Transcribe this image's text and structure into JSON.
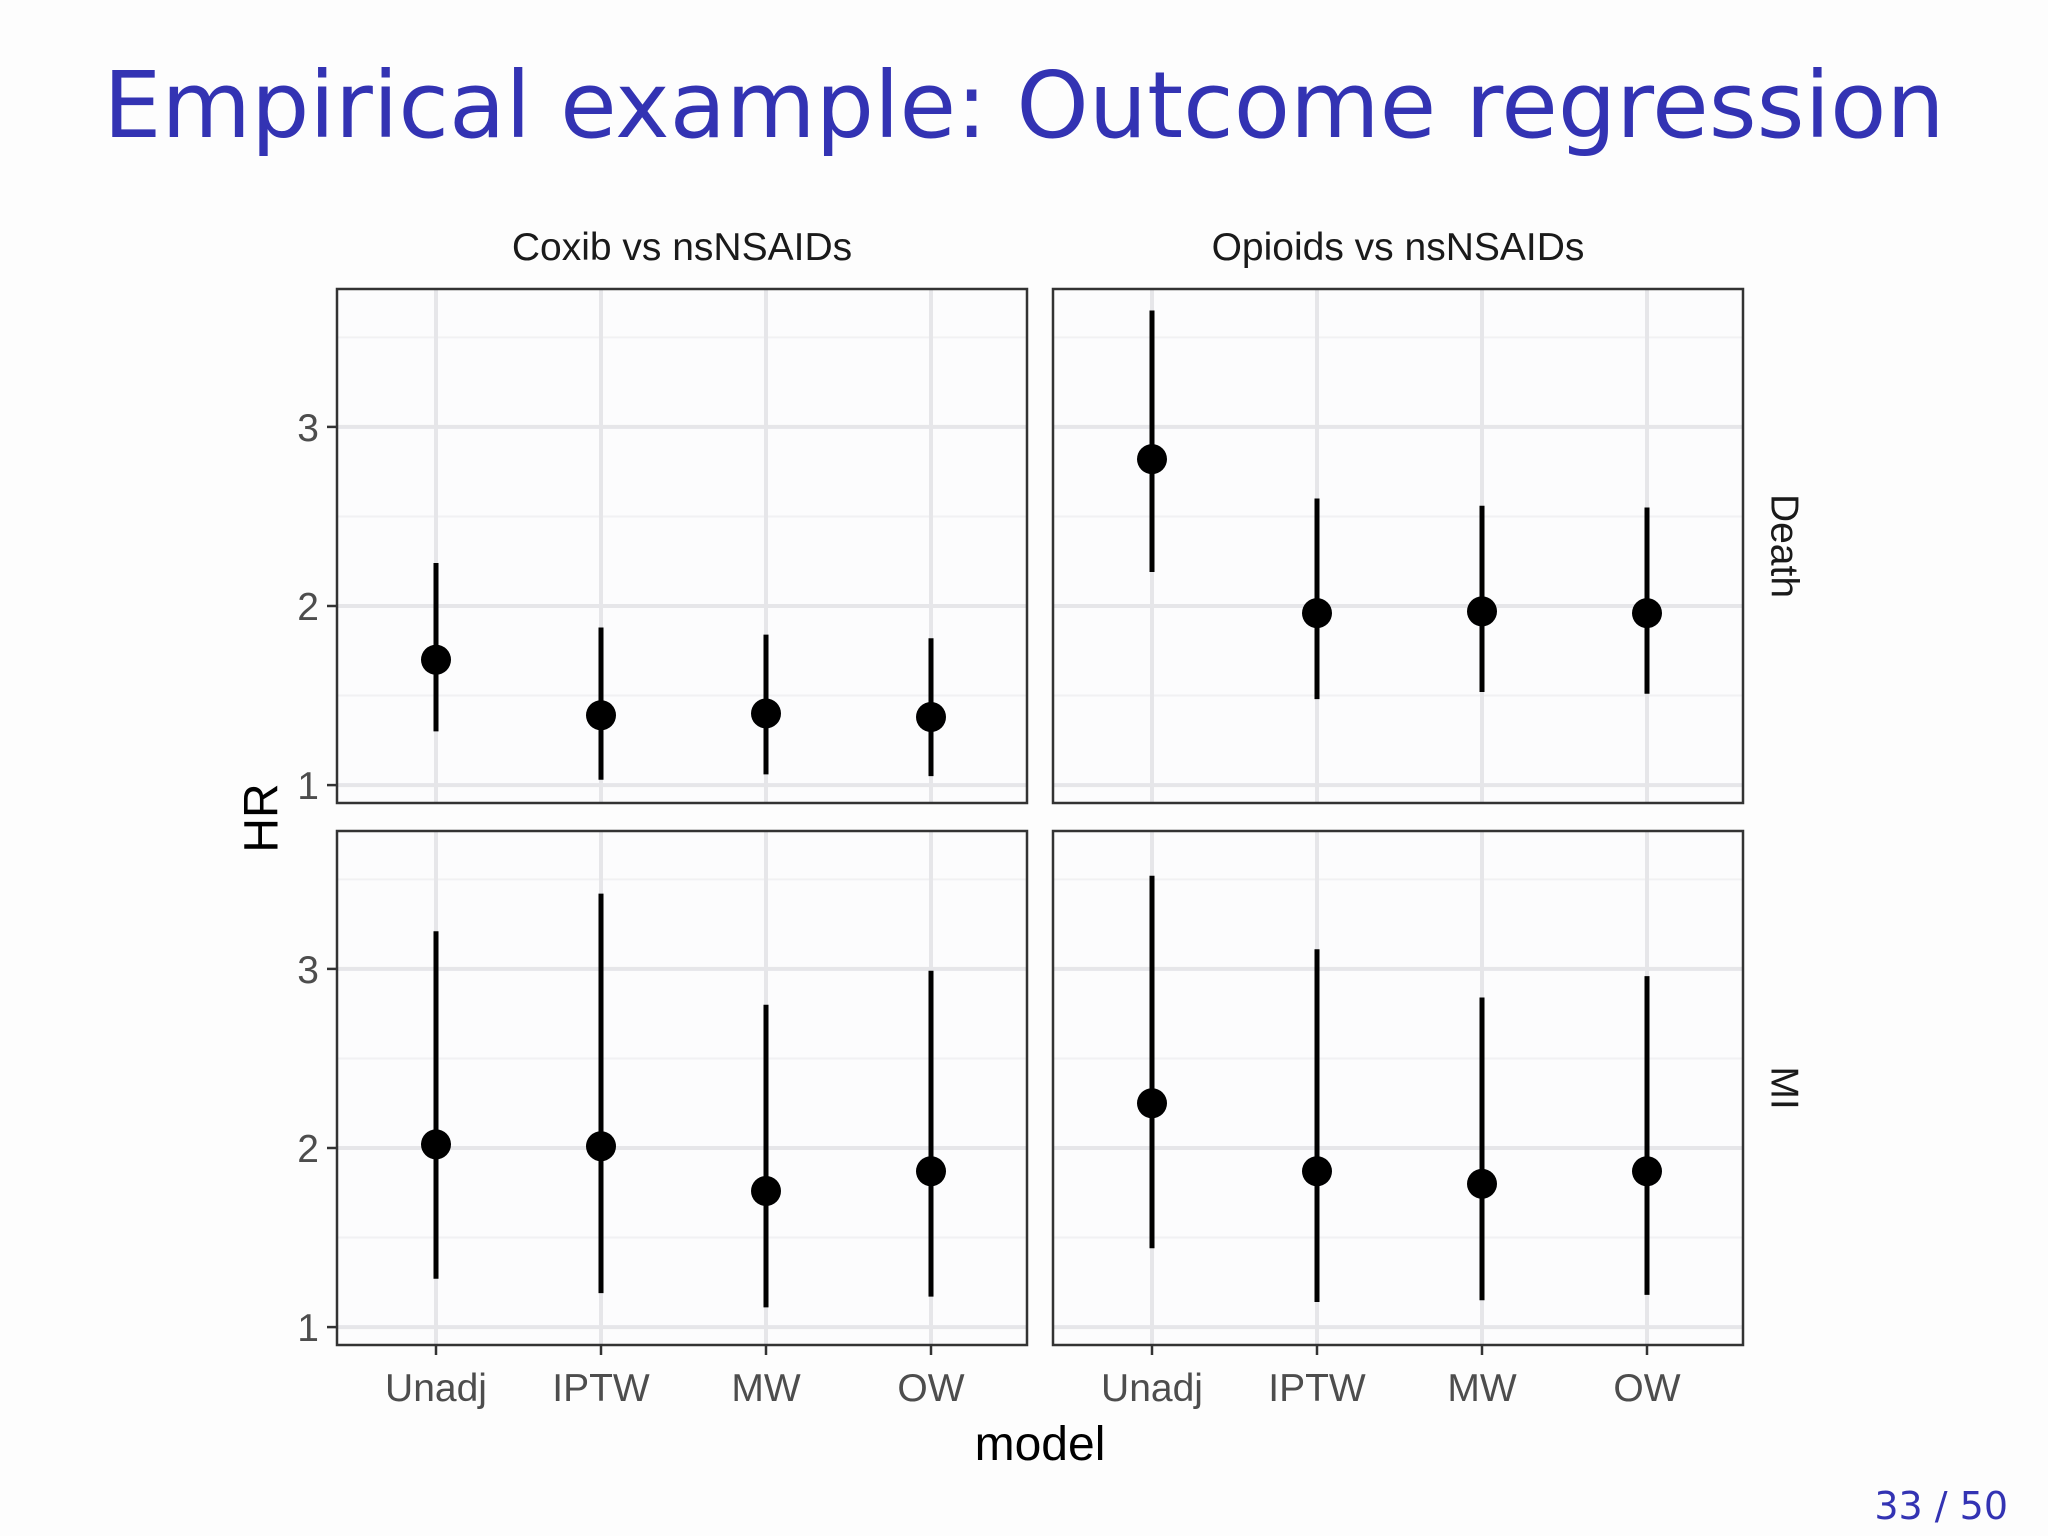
{
  "slide": {
    "title": "Empirical example: Outcome regression",
    "page_number": "33 / 50"
  },
  "colors": {
    "title": "#3333b3",
    "panel_background": "#fcfcfd",
    "grid_major": "#e6e6e9",
    "grid_minor": "#f1f1f3",
    "panel_border": "#333333",
    "points": "#000000"
  },
  "chart_data": {
    "type": "scatter",
    "geom": "pointrange",
    "xlabel": "model",
    "ylabel": "HR",
    "categories": [
      "Unadj",
      "IPTW",
      "MW",
      "OW"
    ],
    "columns": [
      "Coxib vs nsNSAIDs",
      "Opioids vs nsNSAIDs"
    ],
    "rows": [
      "Death",
      "MI"
    ],
    "yticks": [
      1,
      2,
      3
    ],
    "ylim": [
      0.9,
      3.77
    ],
    "grid": true,
    "panels": [
      {
        "column": "Coxib vs nsNSAIDs",
        "row": "Death",
        "estimate": [
          1.7,
          1.39,
          1.4,
          1.38
        ],
        "lower": [
          1.3,
          1.03,
          1.06,
          1.05
        ],
        "upper": [
          2.24,
          1.88,
          1.84,
          1.82
        ]
      },
      {
        "column": "Opioids vs nsNSAIDs",
        "row": "Death",
        "estimate": [
          2.82,
          1.96,
          1.97,
          1.96
        ],
        "lower": [
          2.19,
          1.48,
          1.52,
          1.51
        ],
        "upper": [
          3.65,
          2.6,
          2.56,
          2.55
        ]
      },
      {
        "column": "Coxib vs nsNSAIDs",
        "row": "MI",
        "estimate": [
          2.02,
          2.01,
          1.76,
          1.87
        ],
        "lower": [
          1.27,
          1.19,
          1.11,
          1.17
        ],
        "upper": [
          3.21,
          3.42,
          2.8,
          2.99
        ]
      },
      {
        "column": "Opioids vs nsNSAIDs",
        "row": "MI",
        "estimate": [
          2.25,
          1.87,
          1.8,
          1.87
        ],
        "lower": [
          1.44,
          1.14,
          1.15,
          1.18
        ],
        "upper": [
          3.52,
          3.11,
          2.84,
          2.96
        ]
      }
    ]
  }
}
